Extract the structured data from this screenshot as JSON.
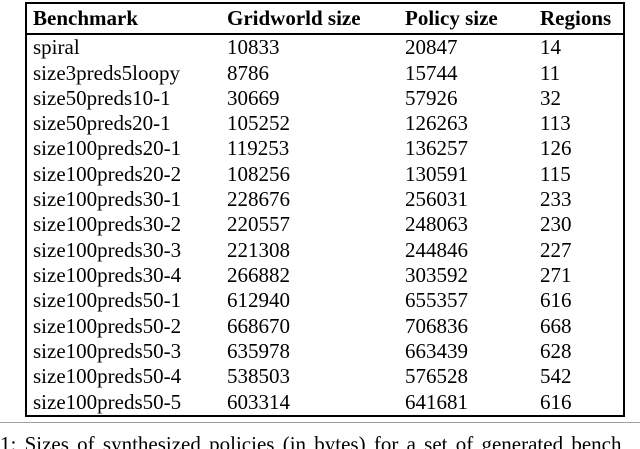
{
  "table": {
    "columns": [
      "Benchmark",
      "Gridworld size",
      "Policy size",
      "Regions"
    ],
    "rows": [
      [
        "spiral",
        "10833",
        "20847",
        "14"
      ],
      [
        "size3preds5loopy",
        "8786",
        "15744",
        "11"
      ],
      [
        "size50preds10-1",
        "30669",
        "57926",
        "32"
      ],
      [
        "size50preds20-1",
        "105252",
        "126263",
        "113"
      ],
      [
        "size100preds20-1",
        "119253",
        "136257",
        "126"
      ],
      [
        "size100preds20-2",
        "108256",
        "130591",
        "115"
      ],
      [
        "size100preds30-1",
        "228676",
        "256031",
        "233"
      ],
      [
        "size100preds30-2",
        "220557",
        "248063",
        "230"
      ],
      [
        "size100preds30-3",
        "221308",
        "244846",
        "227"
      ],
      [
        "size100preds30-4",
        "266882",
        "303592",
        "271"
      ],
      [
        "size100preds50-1",
        "612940",
        "655357",
        "616"
      ],
      [
        "size100preds50-2",
        "668670",
        "706836",
        "668"
      ],
      [
        "size100preds50-3",
        "635978",
        "663439",
        "628"
      ],
      [
        "size100preds50-4",
        "538503",
        "576528",
        "542"
      ],
      [
        "size100preds50-5",
        "603314",
        "641681",
        "616"
      ]
    ]
  },
  "caption": {
    "text": "1: Sizes of synthesized policies (in bytes) for a set of generated bench"
  },
  "colors": {
    "table_border": "#000000",
    "divider": "#a0a0a0",
    "text": "#000000",
    "background": "#ffffff"
  }
}
